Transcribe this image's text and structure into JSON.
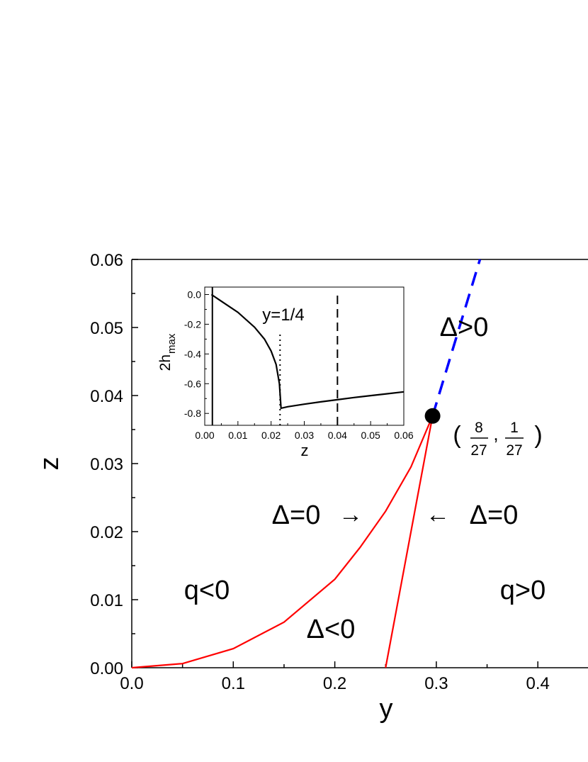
{
  "chart_data": {
    "type": "line",
    "xlabel": "y",
    "ylabel": "z",
    "xlim": [
      0,
      0.45
    ],
    "ylim": [
      0,
      0.06
    ],
    "x_ticks": [
      "0.0",
      "0.1",
      "0.2",
      "0.3",
      "0.4"
    ],
    "y_ticks": [
      "0.00",
      "0.01",
      "0.02",
      "0.03",
      "0.04",
      "0.05",
      "0.06"
    ],
    "series": [
      {
        "color": "#ff0000",
        "style": "solid",
        "points": [
          [
            0,
            0
          ],
          [
            0.05,
            0.0006
          ],
          [
            0.1,
            0.0028
          ],
          [
            0.15,
            0.0067
          ],
          [
            0.2,
            0.013
          ],
          [
            0.225,
            0.0177
          ],
          [
            0.25,
            0.023
          ],
          [
            0.275,
            0.0295
          ],
          [
            0.2963,
            0.037
          ]
        ]
      },
      {
        "color": "#ff0000",
        "style": "solid",
        "points": [
          [
            0.25,
            0
          ],
          [
            0.2963,
            0.037
          ]
        ]
      },
      {
        "color": "#0000ff",
        "style": "dashed",
        "points": [
          [
            0.2963,
            0.037
          ],
          [
            0.343,
            0.06
          ]
        ]
      }
    ],
    "special_point": {
      "x": 0.2963,
      "y": 0.037,
      "label_open": "(",
      "label_comma": ",",
      "label_close": ")",
      "frac1_num": "8",
      "frac1_den": "27",
      "frac2_num": "1",
      "frac2_den": "27"
    },
    "annotations": {
      "delta_pos": "Δ>0",
      "delta_zero_left": "Δ=0",
      "delta_zero_right": "Δ=0",
      "delta_neg": "Δ<0",
      "q_neg": "q<0",
      "q_pos": "q>0",
      "arrow_right": "→",
      "arrow_left": "←"
    },
    "inset": {
      "type": "line",
      "xlabel": "z",
      "ylabel_main": "2h",
      "ylabel_sub": "max",
      "xlim": [
        0,
        0.06
      ],
      "ylim": [
        -0.88,
        0.05
      ],
      "x_ticks": [
        "0.00",
        "0.01",
        "0.02",
        "0.03",
        "0.04",
        "0.05",
        "0.06"
      ],
      "y_ticks": [
        "0.0",
        "-0.2",
        "-0.4",
        "-0.6",
        "-0.8"
      ],
      "annotation": "y=1/4",
      "curve": [
        [
          0.002,
          0
        ],
        [
          0.005,
          -0.045
        ],
        [
          0.01,
          -0.12
        ],
        [
          0.015,
          -0.22
        ],
        [
          0.018,
          -0.3
        ],
        [
          0.02,
          -0.38
        ],
        [
          0.0215,
          -0.47
        ],
        [
          0.0225,
          -0.6
        ],
        [
          0.023,
          -0.765
        ],
        [
          0.025,
          -0.755
        ],
        [
          0.03,
          -0.738
        ],
        [
          0.035,
          -0.722
        ],
        [
          0.04,
          -0.708
        ],
        [
          0.045,
          -0.693
        ],
        [
          0.05,
          -0.68
        ],
        [
          0.055,
          -0.668
        ],
        [
          0.06,
          -0.655
        ]
      ],
      "vlines": [
        {
          "x": 0.0023,
          "style": "solid"
        },
        {
          "x": 0.0227,
          "style": "dotted"
        },
        {
          "x": 0.04,
          "style": "dashed"
        }
      ]
    }
  }
}
